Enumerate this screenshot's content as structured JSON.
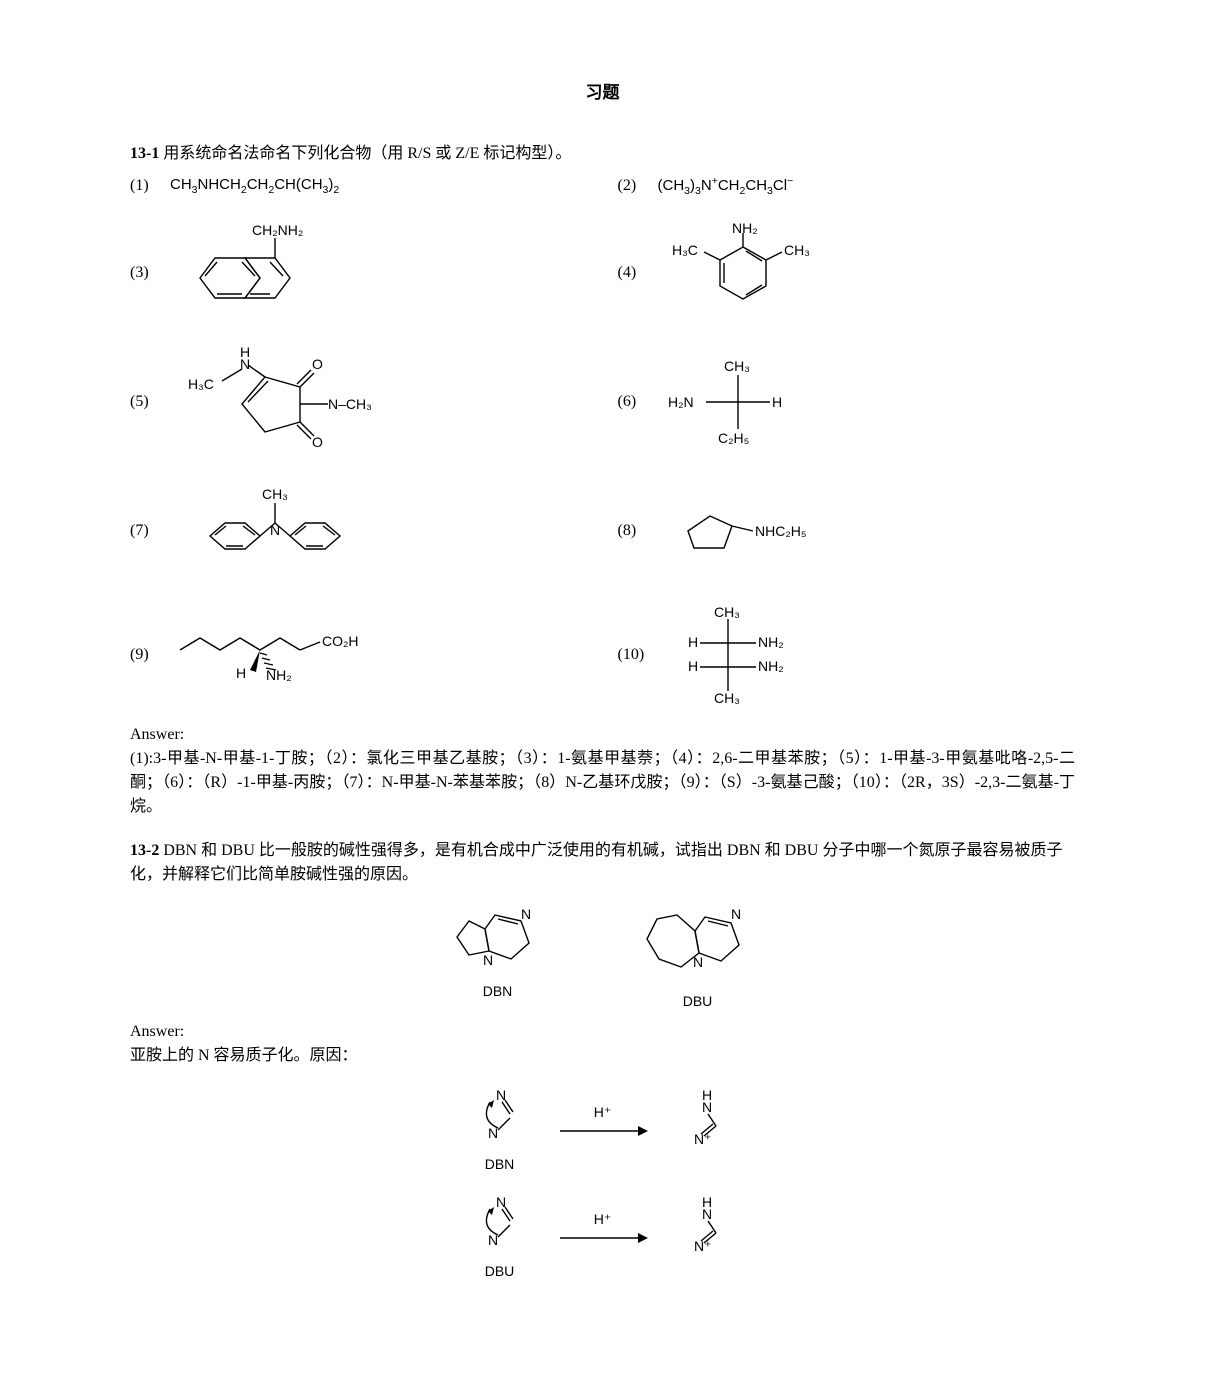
{
  "title": "习题",
  "p1": {
    "num": "13-1",
    "text": " 用系统命名法命名下列化合物（用 R/S 或 Z/E 标记构型）。",
    "items": {
      "i1": "(1)",
      "i2": "(2)",
      "i3": "(3)",
      "i4": "(4)",
      "i5": "(5)",
      "i6": "(6)",
      "i7": "(7)",
      "i8": "(8)",
      "i9": "(9)",
      "i10": "(10)"
    },
    "formulas": {
      "f1_html": "CH<sub>3</sub>NHCH<sub>2</sub>CH<sub>2</sub>CH(CH<sub>3</sub>)<sub>2</sub>",
      "f2_html": "(CH<sub>3</sub>)<sub>3</sub>N<sup>+</sup>CH<sub>2</sub>CH<sub>3</sub>Cl<sup>−</sup>"
    },
    "labels": {
      "l3_top": "CH₂NH₂",
      "l4_top": "NH₂",
      "l4_left": "H₃C",
      "l4_right": "CH₃",
      "l5_left": "H₃C",
      "l5_right": "N–CH₃",
      "l5_O1": "O",
      "l5_O2": "O",
      "l5_H": "H",
      "l5_N": "N",
      "l6_top": "CH₃",
      "l6_mid": "H",
      "l6_left": "H₂N",
      "l6_bot": "C₂H₅",
      "l7_top": "CH₃",
      "l7_N": "N",
      "l8_right": "NHC₂H₅",
      "l9_right": "CO₂H",
      "l9_H": "H",
      "l9_NH2": "NH₂",
      "l10_t": "CH₃",
      "l10_h1": "H",
      "l10_h2": "H",
      "l10_n1": "NH₂",
      "l10_n2": "NH₂",
      "l10_b": "CH₃"
    }
  },
  "ans1": {
    "head": "Answer:",
    "body": "(1):3-甲基-N-甲基-1-丁胺；（2）：氯化三甲基乙基胺；（3）：1-氨基甲基萘；（4）：2,6-二甲基苯胺；（5）：1-甲基-3-甲氨基吡咯-2,5-二酮；（6）：（R）-1-甲基-丙胺；（7）：N-甲基-N-苯基苯胺；（8）N-乙基环戊胺；（9）：（S）-3-氨基己酸；（10）：（2R，3S）-2,3-二氨基-丁烷。"
  },
  "p2": {
    "num": "13-2",
    "text": "  DBN 和 DBU 比一般胺的碱性强得多，是有机合成中广泛使用的有机碱，试指出 DBN 和 DBU 分子中哪一个氮原子最容易被质子化，并解释它们比简单胺碱性强的原因。",
    "dbn": "DBN",
    "dbu": "DBU",
    "N": "N"
  },
  "ans2": {
    "head": "Answer:",
    "line": "亚胺上的 N 容易质子化。原因：",
    "Hplus": "H⁺",
    "dbn": "DBN",
    "dbu": "DBU",
    "N": "N",
    "Ncat": "N⁺",
    "HN": "H\nN"
  },
  "style": {
    "stroke": "#000000",
    "stroke_width": 1.4,
    "font_family_sans": "Arial, Helvetica, sans-serif",
    "font_family_serif": "Times New Roman, SimSun, serif",
    "font_size_body": 16,
    "font_size_formula": 15,
    "font_size_label": 14,
    "bg": "#ffffff",
    "text": "#000000"
  }
}
